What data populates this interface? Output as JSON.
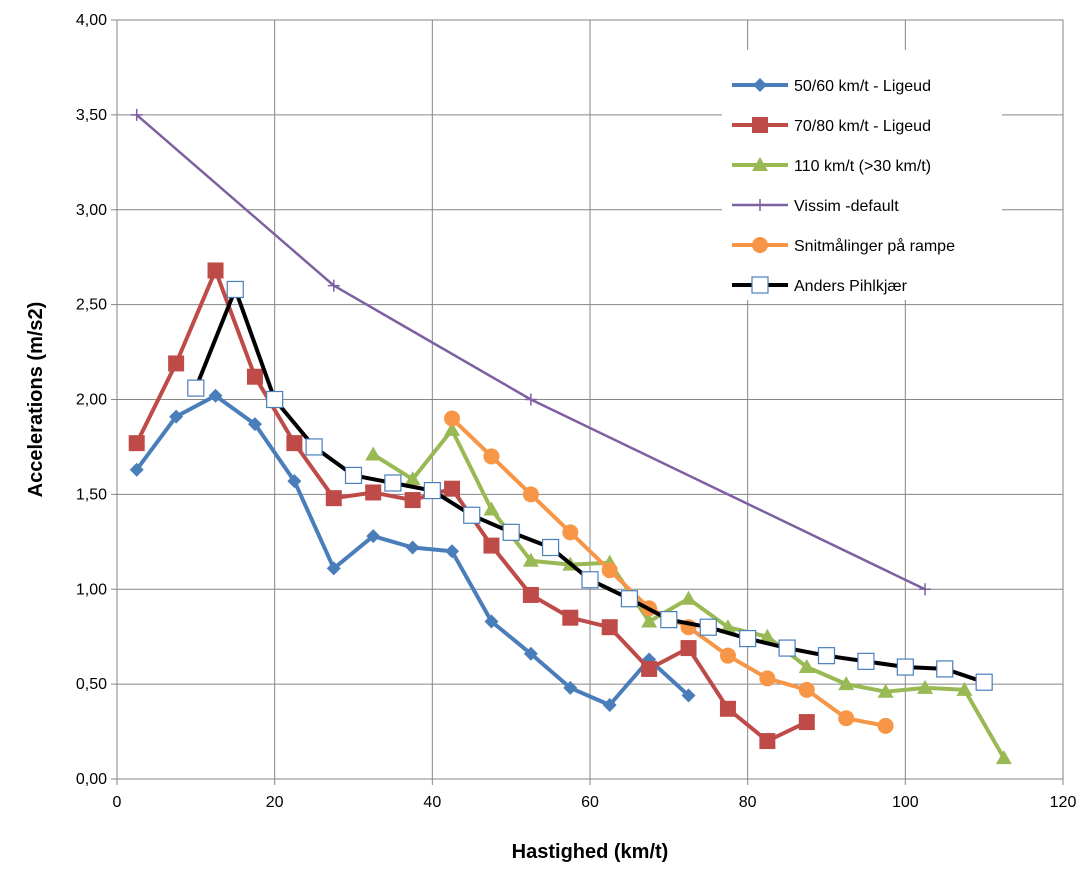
{
  "chart_data": {
    "type": "line",
    "title": "",
    "xlabel": "Hastighed (km/t)",
    "ylabel": "Accelerations (m/s2)",
    "xlim": [
      0,
      120
    ],
    "ylim": [
      0,
      4
    ],
    "x_ticks": [
      "0",
      "20",
      "40",
      "60",
      "80",
      "100",
      "120"
    ],
    "y_ticks": [
      "0,00",
      "0,50",
      "1,00",
      "1,50",
      "2,00",
      "2,50",
      "3,00",
      "3,50",
      "4,00"
    ],
    "grid": true,
    "legend_position": "top-right",
    "series": [
      {
        "name": "50/60 km/t - Ligeud",
        "color": "#4a7ebb",
        "marker": "diamond",
        "x": [
          2.5,
          7.5,
          12.5,
          17.5,
          22.5,
          27.5,
          32.5,
          37.5,
          42.5,
          47.5,
          52.5,
          57.5,
          62.5,
          67.5,
          72.5
        ],
        "y": [
          1.63,
          1.91,
          2.02,
          1.87,
          1.57,
          1.11,
          1.28,
          1.22,
          1.2,
          0.83,
          0.66,
          0.48,
          0.39,
          0.63,
          0.44
        ]
      },
      {
        "name": "70/80 km/t - Ligeud",
        "color": "#be4b48",
        "marker": "square",
        "x": [
          2.5,
          7.5,
          12.5,
          17.5,
          22.5,
          27.5,
          32.5,
          37.5,
          42.5,
          47.5,
          52.5,
          57.5,
          62.5,
          67.5,
          72.5,
          77.5,
          82.5,
          87.5
        ],
        "y": [
          1.77,
          2.19,
          2.68,
          2.12,
          1.77,
          1.48,
          1.51,
          1.47,
          1.53,
          1.23,
          0.97,
          0.85,
          0.8,
          0.58,
          0.69,
          0.37,
          0.2,
          0.3
        ]
      },
      {
        "name": "110 km/t (>30 km/t)",
        "color": "#98b954",
        "marker": "triangle",
        "x": [
          32.5,
          37.5,
          42.5,
          47.5,
          52.5,
          57.5,
          62.5,
          67.5,
          72.5,
          77.5,
          82.5,
          87.5,
          92.5,
          97.5,
          102.5,
          107.5,
          112.5
        ],
        "y": [
          1.71,
          1.58,
          1.84,
          1.42,
          1.15,
          1.13,
          1.14,
          0.83,
          0.95,
          0.8,
          0.75,
          0.59,
          0.5,
          0.46,
          0.48,
          0.47,
          0.11
        ]
      },
      {
        "name": "Vissim -default",
        "color": "#7d60a0",
        "marker": "plus",
        "x": [
          2.5,
          27.5,
          52.5,
          102.5
        ],
        "y": [
          3.5,
          2.6,
          2.0,
          1.0
        ]
      },
      {
        "name": "Snitmålinger på rampe",
        "color": "#f79646",
        "marker": "circle",
        "x": [
          42.5,
          47.5,
          52.5,
          57.5,
          62.5,
          67.5,
          72.5,
          77.5,
          82.5,
          87.5,
          92.5,
          97.5
        ],
        "y": [
          1.9,
          1.7,
          1.5,
          1.3,
          1.1,
          0.9,
          0.8,
          0.65,
          0.53,
          0.47,
          0.32,
          0.28
        ]
      },
      {
        "name": "Anders Pihlkjær",
        "color": "#000000",
        "marker": "open-square",
        "marker_color": "#4a7ebb",
        "x": [
          10,
          15,
          20,
          25,
          30,
          35,
          40,
          45,
          50,
          55,
          60,
          65,
          70,
          75,
          80,
          85,
          90,
          95,
          100,
          105,
          110
        ],
        "y": [
          2.06,
          2.58,
          2.0,
          1.75,
          1.6,
          1.56,
          1.52,
          1.39,
          1.3,
          1.22,
          1.05,
          0.95,
          0.84,
          0.8,
          0.74,
          0.69,
          0.65,
          0.62,
          0.59,
          0.58,
          0.51
        ]
      }
    ]
  }
}
